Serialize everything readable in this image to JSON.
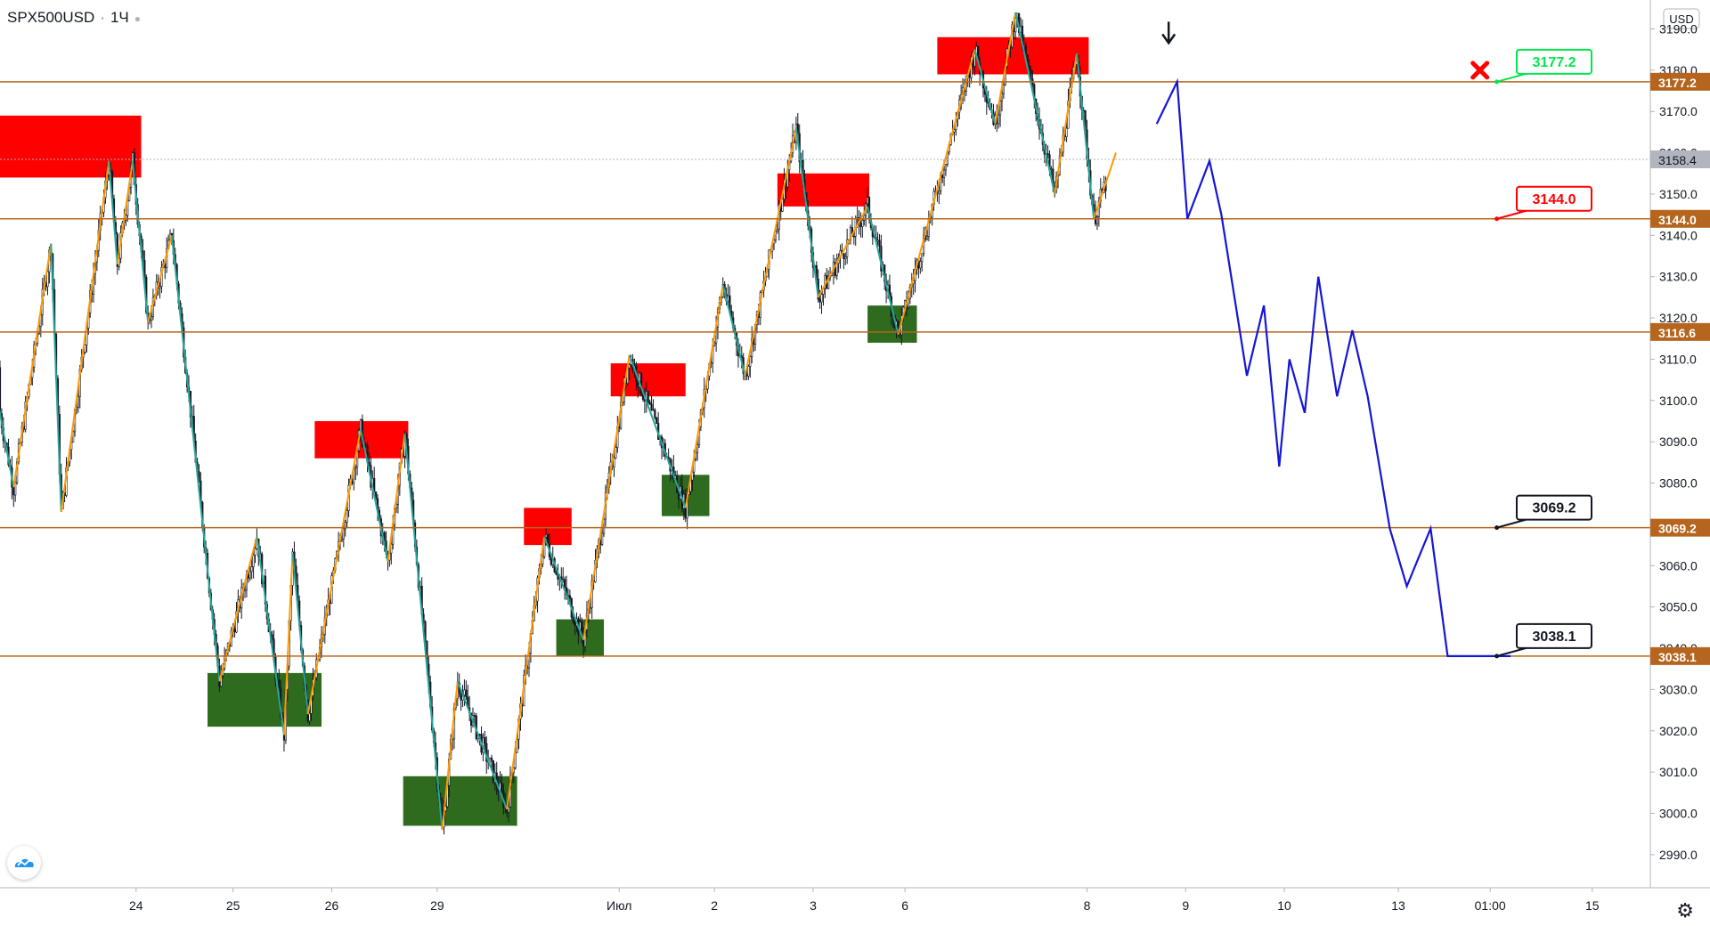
{
  "header": {
    "symbol": "SPX500USD",
    "interval": "1Ч"
  },
  "currency_label": "USD",
  "icons": {
    "logo": "tradingview-cloud-icon",
    "settings": "gear-icon",
    "down_arrow": "arrow-down-icon",
    "cancel": "red-x-icon"
  },
  "colors": {
    "level_line": "#b5651d",
    "level_tag": "#b5651d",
    "resistance_zone": "#ff0000",
    "support_zone": "#2e6b1e",
    "forecast": "#1515d6",
    "zigzag_up": "#ff9800",
    "zigzag_down": "#26a69a",
    "candle": "#131722",
    "current_price_tag": "#b2b5be"
  },
  "chart_data": {
    "type": "line",
    "title": "",
    "ylabel": "",
    "ylim": [
      2982,
      3197
    ],
    "grid": false,
    "y_ticks": [
      2990,
      3000,
      3010,
      3020,
      3030,
      3040,
      3050,
      3060,
      3070,
      3080,
      3090,
      3100,
      3110,
      3120,
      3130,
      3140,
      3150,
      3160,
      3170,
      3180,
      3190
    ],
    "y_tick_labels": [
      "2990.0",
      "3000.0",
      "3010.0",
      "3020.0",
      "3030.0",
      "3040.0",
      "3050.0",
      "3060.0",
      "3070.0",
      "3080.0",
      "3090.0",
      "3100.0",
      "3110.0",
      "3120.0",
      "3130.0",
      "3140.0",
      "3150.0",
      "3160.0",
      "3170.0",
      "3180.0",
      "3190.0"
    ],
    "x_ticks": [
      {
        "label": "24",
        "bar": 80
      },
      {
        "label": "25",
        "bar": 137
      },
      {
        "label": "26",
        "bar": 195
      },
      {
        "label": "29",
        "bar": 257
      },
      {
        "label": "Июл",
        "bar": 364
      },
      {
        "label": "2",
        "bar": 420
      },
      {
        "label": "3",
        "bar": 478
      },
      {
        "label": "6",
        "bar": 532
      },
      {
        "label": "8",
        "bar": 639
      },
      {
        "label": "9",
        "bar": 697
      },
      {
        "label": "10",
        "bar": 755
      },
      {
        "label": "13",
        "bar": 822
      },
      {
        "label": "01:00",
        "bar": 876
      },
      {
        "label": "15",
        "bar": 936
      }
    ],
    "horizontal_levels": [
      {
        "price": 3177.2,
        "label": "3177.2"
      },
      {
        "price": 3144.0,
        "label": "3144.0"
      },
      {
        "price": 3116.6,
        "label": "3116.6"
      },
      {
        "price": 3069.2,
        "label": "3069.2"
      },
      {
        "price": 3038.1,
        "label": "3038.1"
      }
    ],
    "current_price": {
      "price": 3158.4,
      "label": "3158.4"
    },
    "callouts": [
      {
        "label": "3177.2",
        "price": 3177.2,
        "bar": 882,
        "style": "green"
      },
      {
        "label": "3144.0",
        "price": 3144.0,
        "bar": 882,
        "style": "red"
      },
      {
        "label": "3069.2",
        "price": 3069.2,
        "bar": 882,
        "style": "black"
      },
      {
        "label": "3038.1",
        "price": 3038.1,
        "bar": 882,
        "style": "black"
      }
    ],
    "markers": [
      {
        "type": "cancel-x",
        "bar": 870,
        "price": 3180
      },
      {
        "type": "down-arrow",
        "bar": 687,
        "price": 3187
      }
    ],
    "zones": [
      {
        "kind": "resistance",
        "x1": -5,
        "x2": 83,
        "y1": 3169,
        "y2": 3154
      },
      {
        "kind": "resistance",
        "x1": 185,
        "x2": 240,
        "y1": 3095,
        "y2": 3086
      },
      {
        "kind": "resistance",
        "x1": 308,
        "x2": 336,
        "y1": 3074,
        "y2": 3065
      },
      {
        "kind": "resistance",
        "x1": 359,
        "x2": 403,
        "y1": 3109,
        "y2": 3101
      },
      {
        "kind": "resistance",
        "x1": 457,
        "x2": 511,
        "y1": 3155,
        "y2": 3147
      },
      {
        "kind": "resistance",
        "x1": 551,
        "x2": 640,
        "y1": 3188,
        "y2": 3179
      },
      {
        "kind": "support",
        "x1": 122,
        "x2": 189,
        "y1": 3034,
        "y2": 3021
      },
      {
        "kind": "support",
        "x1": 237,
        "x2": 304,
        "y1": 3009,
        "y2": 2997
      },
      {
        "kind": "support",
        "x1": 327,
        "x2": 355,
        "y1": 3047,
        "y2": 3038
      },
      {
        "kind": "support",
        "x1": 389,
        "x2": 417,
        "y1": 3082,
        "y2": 3072
      },
      {
        "kind": "support",
        "x1": 510,
        "x2": 539,
        "y1": 3123,
        "y2": 3114
      }
    ],
    "zigzag": [
      {
        "x": -5,
        "y": 3108
      },
      {
        "x": 8,
        "y": 3079
      },
      {
        "x": 30,
        "y": 3138
      },
      {
        "x": 36,
        "y": 3073
      },
      {
        "x": 64,
        "y": 3158
      },
      {
        "x": 69,
        "y": 3133
      },
      {
        "x": 78,
        "y": 3158
      },
      {
        "x": 87,
        "y": 3119
      },
      {
        "x": 101,
        "y": 3140
      },
      {
        "x": 129,
        "y": 3032
      },
      {
        "x": 151,
        "y": 3067
      },
      {
        "x": 167,
        "y": 3019
      },
      {
        "x": 172,
        "y": 3063
      },
      {
        "x": 181,
        "y": 3024
      },
      {
        "x": 212,
        "y": 3093
      },
      {
        "x": 228,
        "y": 3061
      },
      {
        "x": 238,
        "y": 3092
      },
      {
        "x": 260,
        "y": 2996
      },
      {
        "x": 269,
        "y": 3032
      },
      {
        "x": 298,
        "y": 3001
      },
      {
        "x": 320,
        "y": 3067
      },
      {
        "x": 343,
        "y": 3042
      },
      {
        "x": 370,
        "y": 3111
      },
      {
        "x": 403,
        "y": 3074
      },
      {
        "x": 425,
        "y": 3128
      },
      {
        "x": 438,
        "y": 3106
      },
      {
        "x": 468,
        "y": 3166
      },
      {
        "x": 481,
        "y": 3125
      },
      {
        "x": 510,
        "y": 3147
      },
      {
        "x": 528,
        "y": 3116
      },
      {
        "x": 573,
        "y": 3185
      },
      {
        "x": 585,
        "y": 3167
      },
      {
        "x": 597,
        "y": 3194
      },
      {
        "x": 620,
        "y": 3150
      },
      {
        "x": 633,
        "y": 3184
      },
      {
        "x": 643,
        "y": 3144
      },
      {
        "x": 656,
        "y": 3160
      }
    ],
    "series": [
      {
        "name": "",
        "x": [
          680,
          692,
          698,
          711,
          718,
          733,
          743,
          752,
          758,
          767,
          775,
          786,
          795,
          804,
          817,
          827,
          841,
          851,
          858,
          870,
          877,
          888
        ],
        "values": [
          3167,
          3177.2,
          3144,
          3158,
          3145,
          3106,
          3123,
          3084,
          3110,
          3097,
          3130,
          3101,
          3117,
          3101,
          3069,
          3055,
          3069,
          3038.1,
          3038.1,
          3038.1,
          3038.1,
          3038.1
        ]
      }
    ]
  }
}
